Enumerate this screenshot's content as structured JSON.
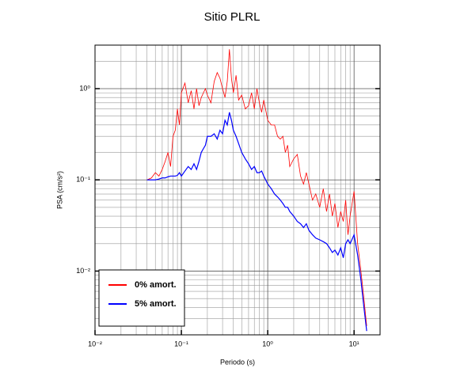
{
  "chart_data": {
    "type": "line",
    "title": "Sitio PLRL",
    "xlabel": "Periodo (s)",
    "ylabel": "PSA (cm/s²)",
    "xscale": "log",
    "yscale": "log",
    "grid": true,
    "legend": "lower left",
    "xlim": [
      0.01,
      20
    ],
    "ylim": [
      0.002,
      3
    ],
    "xticks": [
      {
        "value": 0.01,
        "label": "10⁻²"
      },
      {
        "value": 0.1,
        "label": "10⁻¹"
      },
      {
        "value": 1,
        "label": "10⁰"
      },
      {
        "value": 10,
        "label": "10¹"
      }
    ],
    "yticks": [
      {
        "value": 0.01,
        "label": "10⁻²"
      },
      {
        "value": 0.1,
        "label": "10⁻¹"
      },
      {
        "value": 1,
        "label": "10⁰"
      }
    ],
    "xminorticks": [
      0.02,
      0.03,
      0.04,
      0.05,
      0.06,
      0.07,
      0.08,
      0.09,
      0.2,
      0.3,
      0.4,
      0.5,
      0.6,
      0.7,
      0.8,
      0.9,
      2,
      3,
      4,
      5,
      6,
      7,
      8,
      9
    ],
    "yminorticks": [
      0.003,
      0.004,
      0.005,
      0.006,
      0.007,
      0.008,
      0.009,
      0.02,
      0.03,
      0.04,
      0.05,
      0.06,
      0.07,
      0.08,
      0.09,
      0.2,
      0.3,
      0.4,
      0.5,
      0.6,
      0.7,
      0.8,
      0.9,
      2
    ],
    "x": [
      0.04,
      0.045,
      0.05,
      0.055,
      0.06,
      0.065,
      0.07,
      0.075,
      0.08,
      0.085,
      0.09,
      0.095,
      0.1,
      0.11,
      0.12,
      0.13,
      0.14,
      0.15,
      0.16,
      0.17,
      0.18,
      0.19,
      0.2,
      0.22,
      0.24,
      0.26,
      0.28,
      0.3,
      0.32,
      0.34,
      0.36,
      0.38,
      0.4,
      0.43,
      0.46,
      0.5,
      0.55,
      0.6,
      0.65,
      0.7,
      0.75,
      0.8,
      0.85,
      0.9,
      1.0,
      1.1,
      1.2,
      1.3,
      1.4,
      1.5,
      1.6,
      1.7,
      1.8,
      2.0,
      2.2,
      2.4,
      2.6,
      2.8,
      3.0,
      3.3,
      3.6,
      4.0,
      4.4,
      4.8,
      5.2,
      5.6,
      6.0,
      6.5,
      7.0,
      7.5,
      8.0,
      8.5,
      9.0,
      10,
      11,
      12,
      13,
      14
    ],
    "series": [
      {
        "name": "0% amort.",
        "color": "#ff0000",
        "values": [
          0.1,
          0.105,
          0.12,
          0.11,
          0.13,
          0.16,
          0.2,
          0.14,
          0.3,
          0.35,
          0.6,
          0.4,
          0.9,
          1.15,
          0.7,
          0.95,
          0.6,
          1.0,
          0.65,
          0.8,
          0.9,
          1.0,
          0.85,
          0.7,
          1.2,
          1.5,
          1.3,
          1.0,
          0.8,
          1.2,
          2.7,
          1.3,
          0.9,
          1.4,
          0.75,
          0.85,
          0.6,
          0.65,
          0.9,
          0.6,
          1.0,
          0.7,
          0.55,
          0.75,
          0.45,
          0.4,
          0.4,
          0.3,
          0.28,
          0.3,
          0.2,
          0.24,
          0.14,
          0.17,
          0.19,
          0.11,
          0.09,
          0.12,
          0.09,
          0.06,
          0.07,
          0.05,
          0.08,
          0.045,
          0.07,
          0.04,
          0.055,
          0.03,
          0.045,
          0.035,
          0.06,
          0.025,
          0.04,
          0.075,
          0.02,
          0.01,
          0.005,
          0.0025
        ]
      },
      {
        "name": "5% amort.",
        "color": "#0000ff",
        "values": [
          0.1,
          0.1,
          0.1,
          0.102,
          0.105,
          0.105,
          0.108,
          0.11,
          0.11,
          0.11,
          0.112,
          0.12,
          0.11,
          0.125,
          0.14,
          0.13,
          0.15,
          0.13,
          0.16,
          0.2,
          0.22,
          0.24,
          0.3,
          0.3,
          0.32,
          0.28,
          0.35,
          0.32,
          0.45,
          0.4,
          0.55,
          0.45,
          0.35,
          0.3,
          0.25,
          0.2,
          0.17,
          0.15,
          0.13,
          0.14,
          0.12,
          0.12,
          0.125,
          0.11,
          0.09,
          0.08,
          0.07,
          0.065,
          0.06,
          0.055,
          0.05,
          0.05,
          0.045,
          0.04,
          0.035,
          0.033,
          0.03,
          0.033,
          0.028,
          0.025,
          0.023,
          0.022,
          0.021,
          0.02,
          0.018,
          0.016,
          0.017,
          0.015,
          0.018,
          0.014,
          0.02,
          0.022,
          0.02,
          0.025,
          0.015,
          0.008,
          0.004,
          0.0022
        ]
      }
    ]
  }
}
